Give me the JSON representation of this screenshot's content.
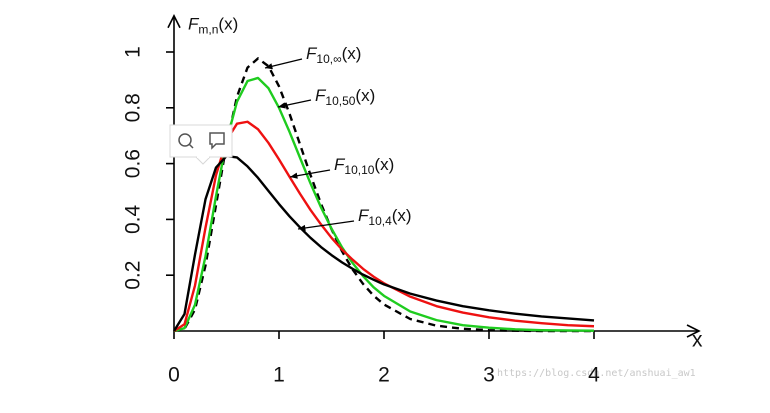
{
  "chart_data": {
    "type": "line",
    "ylabel": {
      "base": "F",
      "sub": "m,n",
      "tail": "(x)"
    },
    "xlabel": "x",
    "x": [
      0,
      0.1,
      0.2,
      0.3,
      0.4,
      0.5,
      0.6,
      0.7,
      0.8,
      0.9,
      1,
      1.1,
      1.2,
      1.3,
      1.4,
      1.5,
      1.6,
      1.7,
      1.8,
      1.9,
      2,
      2.25,
      2.5,
      2.75,
      3,
      3.25,
      3.5,
      3.75,
      4
    ],
    "series": [
      {
        "name": {
          "base": "F",
          "sub": "10,∞",
          "tail": "(x)"
        },
        "color": "#000000",
        "dashed": true,
        "values": [
          0,
          0.008,
          0.077,
          0.235,
          0.451,
          0.668,
          0.84,
          0.944,
          0.977,
          0.949,
          0.877,
          0.779,
          0.669,
          0.559,
          0.456,
          0.365,
          0.286,
          0.221,
          0.169,
          0.127,
          0.095,
          0.043,
          0.019,
          0.008,
          0.003,
          0.001,
          0,
          0,
          0
        ]
      },
      {
        "name": {
          "base": "F",
          "sub": "10,50",
          "tail": "(x)"
        },
        "color": "#1fcc1f",
        "dashed": false,
        "values": [
          0,
          0.01,
          0.094,
          0.268,
          0.483,
          0.681,
          0.822,
          0.896,
          0.907,
          0.87,
          0.8,
          0.714,
          0.621,
          0.529,
          0.443,
          0.367,
          0.3,
          0.244,
          0.197,
          0.157,
          0.126,
          0.07,
          0.039,
          0.021,
          0.012,
          0.006,
          0.003,
          0.002,
          0.001
        ]
      },
      {
        "name": {
          "base": "F",
          "sub": "10,10",
          "tail": "(x)"
        },
        "color": "#ee1111",
        "dashed": false,
        "values": [
          0,
          0.024,
          0.163,
          0.37,
          0.558,
          0.683,
          0.743,
          0.75,
          0.723,
          0.674,
          0.615,
          0.553,
          0.492,
          0.434,
          0.382,
          0.334,
          0.292,
          0.256,
          0.223,
          0.195,
          0.171,
          0.123,
          0.089,
          0.066,
          0.049,
          0.037,
          0.028,
          0.021,
          0.017
        ]
      },
      {
        "name": {
          "base": "F",
          "sub": "10,4",
          "tail": "(x)"
        },
        "color": "#000000",
        "dashed": false,
        "values": [
          0,
          0.061,
          0.274,
          0.472,
          0.586,
          0.627,
          0.622,
          0.59,
          0.549,
          0.502,
          0.455,
          0.411,
          0.371,
          0.334,
          0.301,
          0.272,
          0.246,
          0.223,
          0.202,
          0.184,
          0.167,
          0.134,
          0.109,
          0.089,
          0.074,
          0.062,
          0.052,
          0.045,
          0.038
        ]
      }
    ],
    "xlim": [
      0,
      5
    ],
    "ylim": [
      0,
      1.13
    ],
    "xticks": [
      0,
      1,
      2,
      3,
      4
    ],
    "yticks": [
      0.2,
      0.4,
      0.6,
      0.8,
      1
    ],
    "watermark": "https://blog.csdn.net/anshuai_aw1"
  }
}
